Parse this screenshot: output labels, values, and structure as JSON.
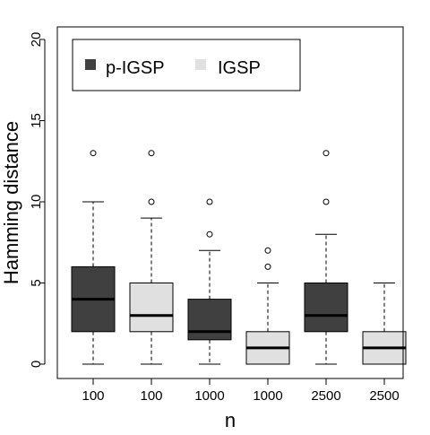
{
  "colors": {
    "p_igsp": "#404040",
    "igsp": "#e0e0e0",
    "axis": "#000000",
    "median": "#000000"
  },
  "chart_data": {
    "type": "box",
    "title": "",
    "xlabel": "n",
    "ylabel": "Hamming distance",
    "ylim": [
      0,
      20
    ],
    "yticks": [
      0,
      5,
      10,
      15,
      20
    ],
    "grid": false,
    "legend": {
      "position": "top-left",
      "entries": [
        {
          "label": "p-IGSP",
          "color": "#404040"
        },
        {
          "label": "IGSP",
          "color": "#e0e0e0"
        }
      ]
    },
    "categories": [
      "100",
      "100",
      "1000",
      "1000",
      "2500",
      "2500"
    ],
    "boxes": [
      {
        "category": "100",
        "series": "p-IGSP",
        "color": "#404040",
        "whisker_low": 0,
        "q1": 2,
        "median": 4,
        "q3": 6,
        "whisker_high": 10,
        "outliers": [
          13
        ]
      },
      {
        "category": "100",
        "series": "IGSP",
        "color": "#e0e0e0",
        "whisker_low": 0,
        "q1": 2,
        "median": 3,
        "q3": 5,
        "whisker_high": 9,
        "outliers": [
          10,
          13
        ]
      },
      {
        "category": "1000",
        "series": "p-IGSP",
        "color": "#404040",
        "whisker_low": 0,
        "q1": 1.5,
        "median": 2,
        "q3": 4,
        "whisker_high": 7,
        "outliers": [
          8,
          10
        ]
      },
      {
        "category": "1000",
        "series": "IGSP",
        "color": "#e0e0e0",
        "whisker_low": 0,
        "q1": 0,
        "median": 1,
        "q3": 2,
        "whisker_high": 5,
        "outliers": [
          6,
          7
        ]
      },
      {
        "category": "2500",
        "series": "p-IGSP",
        "color": "#404040",
        "whisker_low": 0,
        "q1": 2,
        "median": 3,
        "q3": 5,
        "whisker_high": 8,
        "outliers": [
          10,
          13
        ]
      },
      {
        "category": "2500",
        "series": "IGSP",
        "color": "#e0e0e0",
        "whisker_low": 0,
        "q1": 0,
        "median": 1,
        "q3": 2,
        "whisker_high": 5,
        "outliers": []
      }
    ]
  }
}
